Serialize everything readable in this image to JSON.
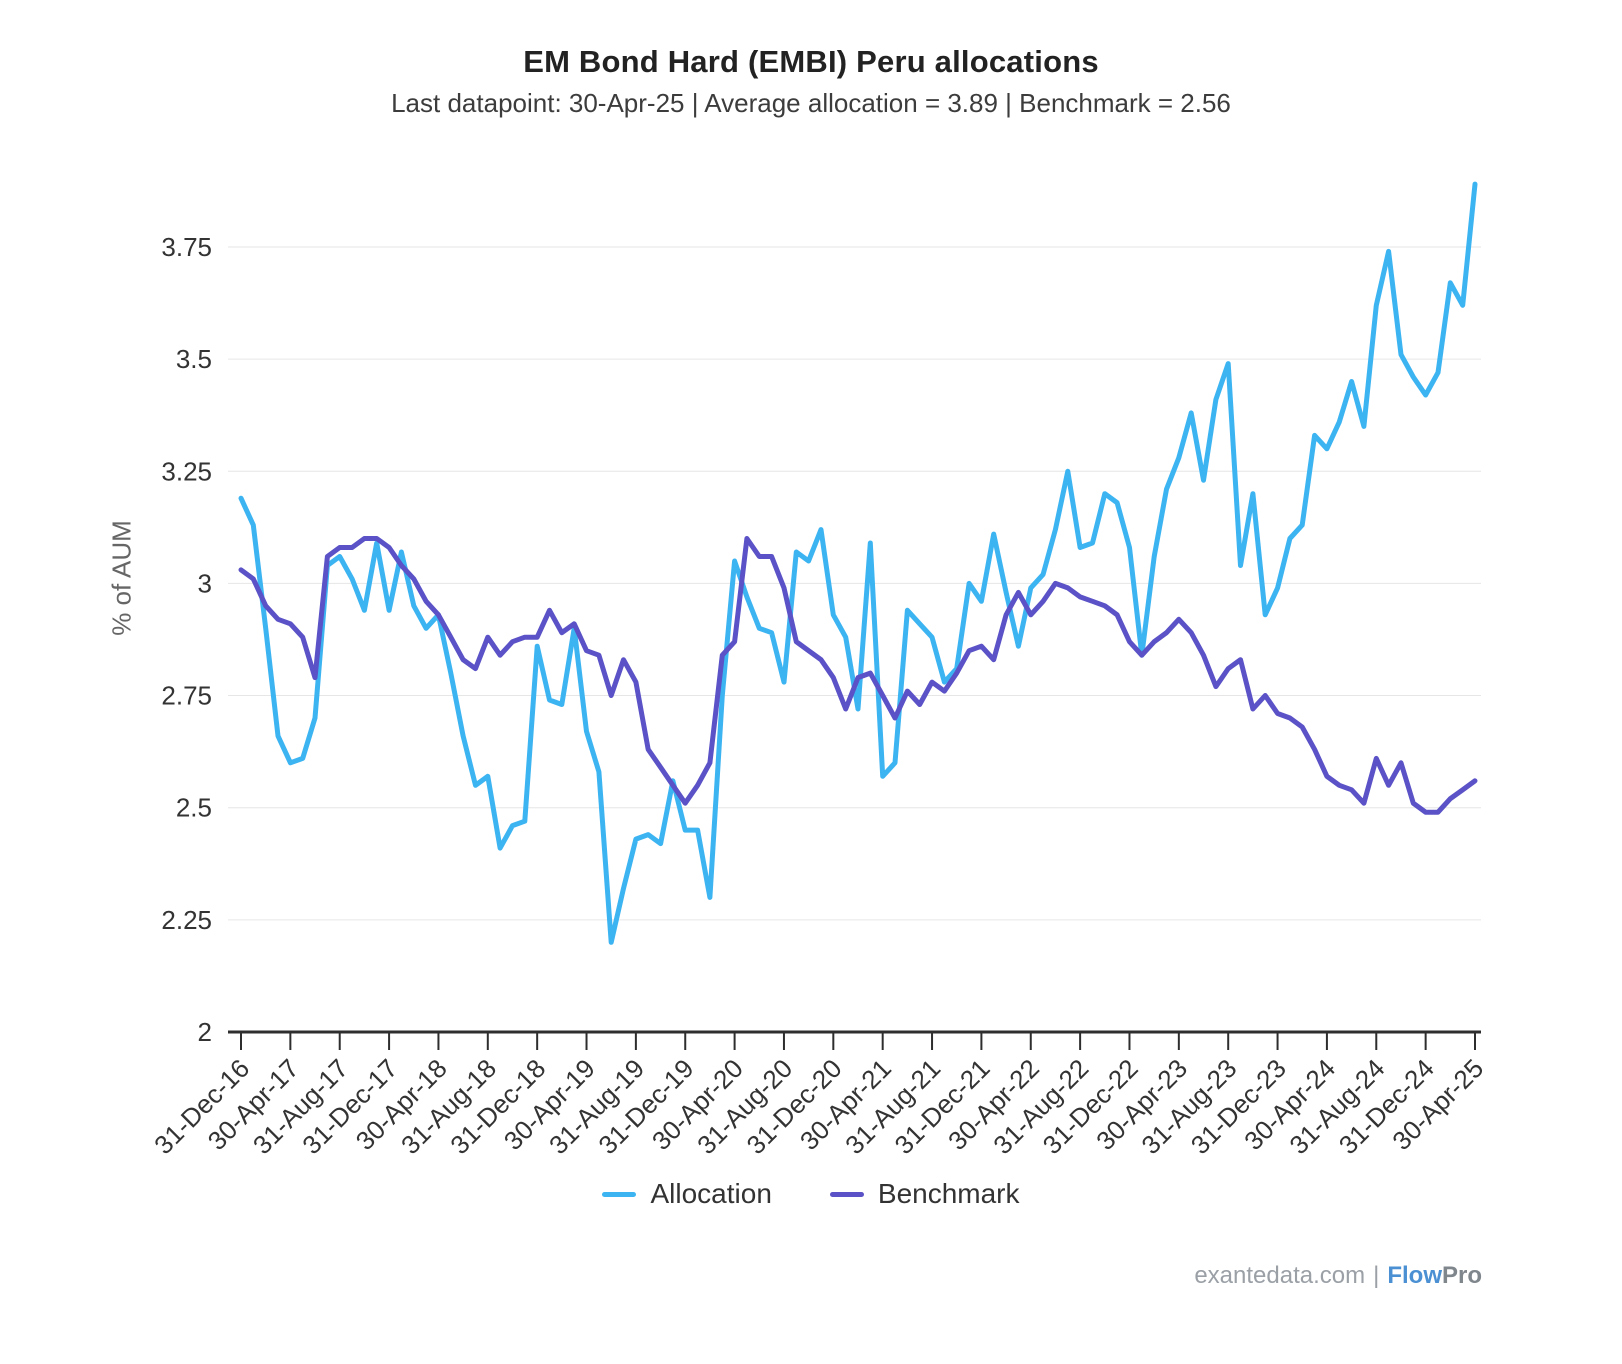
{
  "header": {
    "title": "EM Bond Hard (EMBI) Peru allocations",
    "subtitle": "Last datapoint: 30-Apr-25 | Average allocation = 3.89 | Benchmark = 2.56"
  },
  "footer": {
    "site": "exantedata.com",
    "separator": "|",
    "brand_flow": "Flow",
    "brand_pro": "Pro"
  },
  "chart_data": {
    "type": "line",
    "title": "EM Bond Hard (EMBI) Peru allocations",
    "subtitle": "Last datapoint: 30-Apr-25 | Average allocation = 3.89 | Benchmark = 2.56",
    "ylabel": "% of AUM",
    "xlabel": "",
    "ylim": [
      2,
      3.95
    ],
    "y_ticks": [
      2,
      2.25,
      2.5,
      2.75,
      3,
      3.25,
      3.5,
      3.75
    ],
    "grid": true,
    "legend_position": "bottom",
    "frequency": "monthly",
    "x_start": "31-Dec-16",
    "x_end": "30-Apr-25",
    "x_tick_every_n_points": 4,
    "x_tick_labels": [
      "31-Dec-16",
      "30-Apr-17",
      "31-Aug-17",
      "31-Dec-17",
      "30-Apr-18",
      "31-Aug-18",
      "31-Dec-18",
      "30-Apr-19",
      "31-Aug-19",
      "31-Dec-19",
      "30-Apr-20",
      "31-Aug-20",
      "31-Dec-20",
      "30-Apr-21",
      "31-Aug-21",
      "31-Dec-21",
      "30-Apr-22",
      "31-Aug-22",
      "31-Dec-22",
      "30-Apr-23",
      "31-Aug-23",
      "31-Dec-23",
      "30-Apr-24",
      "31-Aug-24",
      "31-Dec-24",
      "30-Apr-25"
    ],
    "annotations": {
      "last_datapoint": "30-Apr-25",
      "average_allocation": 3.89,
      "benchmark": 2.56
    },
    "series": [
      {
        "name": "Allocation",
        "color": "#3cb4f2",
        "values": [
          3.19,
          3.13,
          2.9,
          2.66,
          2.6,
          2.61,
          2.7,
          3.04,
          3.06,
          3.01,
          2.94,
          3.09,
          2.94,
          3.07,
          2.95,
          2.9,
          2.93,
          2.8,
          2.66,
          2.55,
          2.57,
          2.41,
          2.46,
          2.47,
          2.86,
          2.74,
          2.73,
          2.9,
          2.67,
          2.58,
          2.2,
          2.32,
          2.43,
          2.44,
          2.42,
          2.56,
          2.45,
          2.45,
          2.3,
          2.75,
          3.05,
          2.97,
          2.9,
          2.89,
          2.78,
          3.07,
          3.05,
          3.12,
          2.93,
          2.88,
          2.72,
          3.09,
          2.57,
          2.6,
          2.94,
          2.91,
          2.88,
          2.78,
          2.81,
          3.0,
          2.96,
          3.11,
          2.98,
          2.86,
          2.99,
          3.02,
          3.12,
          3.25,
          3.08,
          3.09,
          3.2,
          3.18,
          3.08,
          2.84,
          3.06,
          3.21,
          3.28,
          3.38,
          3.23,
          3.41,
          3.49,
          3.04,
          3.2,
          2.93,
          2.99,
          3.1,
          3.13,
          3.33,
          3.3,
          3.36,
          3.45,
          3.35,
          3.62,
          3.74,
          3.51,
          3.46,
          3.42,
          3.47,
          3.67,
          3.62,
          3.89
        ]
      },
      {
        "name": "Benchmark",
        "color": "#5a52c6",
        "values": [
          3.03,
          3.01,
          2.95,
          2.92,
          2.91,
          2.88,
          2.79,
          3.06,
          3.08,
          3.08,
          3.1,
          3.1,
          3.08,
          3.04,
          3.01,
          2.96,
          2.93,
          2.88,
          2.83,
          2.81,
          2.88,
          2.84,
          2.87,
          2.88,
          2.88,
          2.94,
          2.89,
          2.91,
          2.85,
          2.84,
          2.75,
          2.83,
          2.78,
          2.63,
          2.59,
          2.55,
          2.51,
          2.55,
          2.6,
          2.84,
          2.87,
          3.1,
          3.06,
          3.06,
          2.99,
          2.87,
          2.85,
          2.83,
          2.79,
          2.72,
          2.79,
          2.8,
          2.75,
          2.7,
          2.76,
          2.73,
          2.78,
          2.76,
          2.8,
          2.85,
          2.86,
          2.83,
          2.93,
          2.98,
          2.93,
          2.96,
          3.0,
          2.99,
          2.97,
          2.96,
          2.95,
          2.93,
          2.87,
          2.84,
          2.87,
          2.89,
          2.92,
          2.89,
          2.84,
          2.77,
          2.81,
          2.83,
          2.72,
          2.75,
          2.71,
          2.7,
          2.68,
          2.63,
          2.57,
          2.55,
          2.54,
          2.51,
          2.61,
          2.55,
          2.6,
          2.51,
          2.49,
          2.49,
          2.52,
          2.54,
          2.56
        ]
      }
    ]
  }
}
